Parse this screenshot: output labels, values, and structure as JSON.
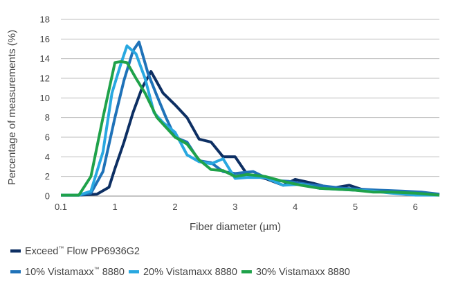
{
  "chart_data": {
    "type": "line",
    "title": "",
    "xlabel": "Fiber diameter (µm)",
    "ylabel": "Percentage of measurements (%)",
    "xlim": [
      0.1,
      6.4
    ],
    "ylim": [
      0,
      18
    ],
    "x_ticks": [
      0.1,
      1,
      2,
      3,
      4,
      5,
      6
    ],
    "y_ticks": [
      0,
      2,
      4,
      6,
      8,
      10,
      12,
      14,
      16,
      18
    ],
    "grid": "horizontal",
    "legend_position": "bottom",
    "series": [
      {
        "name": "Exceed™ Flow PP6936G2",
        "legend": {
          "prefix": "Exceed",
          "mark": "™",
          "suffix": " Flow PP6936G2"
        },
        "color": "#0d2f63",
        "x": [
          0.1,
          0.4,
          0.7,
          0.9,
          1.0,
          1.15,
          1.3,
          1.45,
          1.6,
          1.8,
          2.0,
          2.2,
          2.4,
          2.6,
          2.8,
          3.0,
          3.2,
          3.5,
          3.8,
          4.0,
          4.3,
          4.6,
          4.9,
          5.2,
          5.6,
          6.0,
          6.4
        ],
        "y": [
          0.1,
          0.1,
          0.2,
          0.9,
          2.8,
          5.5,
          8.5,
          11.0,
          12.7,
          10.5,
          9.3,
          8.0,
          5.8,
          5.5,
          4.0,
          4.0,
          2.2,
          1.8,
          1.1,
          1.7,
          1.3,
          0.8,
          1.1,
          0.5,
          0.5,
          0.4,
          0.1
        ]
      },
      {
        "name": "10% Vistamaxx™ 8880",
        "legend": {
          "prefix": "10% Vistamaxx",
          "mark": "™",
          "suffix": " 8880"
        },
        "color": "#1f72b8",
        "x": [
          0.1,
          0.4,
          0.6,
          0.8,
          1.0,
          1.15,
          1.3,
          1.4,
          1.55,
          1.7,
          1.85,
          2.0,
          2.2,
          2.4,
          2.6,
          2.8,
          3.0,
          3.3,
          3.6,
          3.9,
          4.2,
          4.5,
          4.8,
          5.1,
          5.4,
          5.8,
          6.1,
          6.4
        ],
        "y": [
          0.1,
          0.1,
          0.3,
          2.5,
          8.0,
          11.8,
          14.8,
          15.7,
          12.5,
          10.2,
          8.0,
          6.0,
          5.5,
          3.6,
          3.4,
          2.5,
          2.3,
          2.5,
          1.6,
          1.5,
          1.2,
          1.0,
          0.8,
          0.7,
          0.6,
          0.5,
          0.4,
          0.2
        ]
      },
      {
        "name": "20% Vistamaxx 8880",
        "legend": {
          "prefix": "20% Vistamaxx 8880",
          "mark": "",
          "suffix": ""
        },
        "color": "#29a8e0",
        "x": [
          0.1,
          0.4,
          0.6,
          0.8,
          0.95,
          1.1,
          1.2,
          1.35,
          1.5,
          1.65,
          1.8,
          2.0,
          2.2,
          2.4,
          2.6,
          2.8,
          3.0,
          3.2,
          3.5,
          3.8,
          4.1,
          4.4,
          4.7,
          5.0,
          5.3,
          5.6,
          6.0,
          6.4
        ],
        "y": [
          0.1,
          0.1,
          0.5,
          4.5,
          10.5,
          13.5,
          15.3,
          14.5,
          12.0,
          8.5,
          7.5,
          6.5,
          4.2,
          3.5,
          3.3,
          3.8,
          1.8,
          1.9,
          1.9,
          1.1,
          1.2,
          0.8,
          0.7,
          0.6,
          0.5,
          0.3,
          0.1,
          0.1
        ]
      },
      {
        "name": "30% Vistamaxx 8880",
        "legend": {
          "prefix": "30% Vistamaxx 8880",
          "mark": "",
          "suffix": ""
        },
        "color": "#1fa24a",
        "x": [
          0.1,
          0.4,
          0.6,
          0.8,
          1.0,
          1.1,
          1.2,
          1.35,
          1.5,
          1.7,
          1.85,
          2.0,
          2.2,
          2.4,
          2.6,
          2.8,
          3.0,
          3.2,
          3.5,
          3.8,
          4.1,
          4.4,
          4.7,
          5.0,
          5.3,
          5.6,
          6.0,
          6.4
        ],
        "y": [
          0.1,
          0.1,
          2.0,
          8.0,
          13.6,
          13.7,
          13.6,
          12.0,
          10.5,
          8.0,
          7.0,
          6.0,
          5.3,
          3.7,
          2.7,
          2.6,
          2.0,
          2.2,
          2.0,
          1.5,
          1.1,
          0.8,
          0.7,
          0.6,
          0.4,
          0.4,
          0.3,
          0.1
        ]
      }
    ]
  }
}
